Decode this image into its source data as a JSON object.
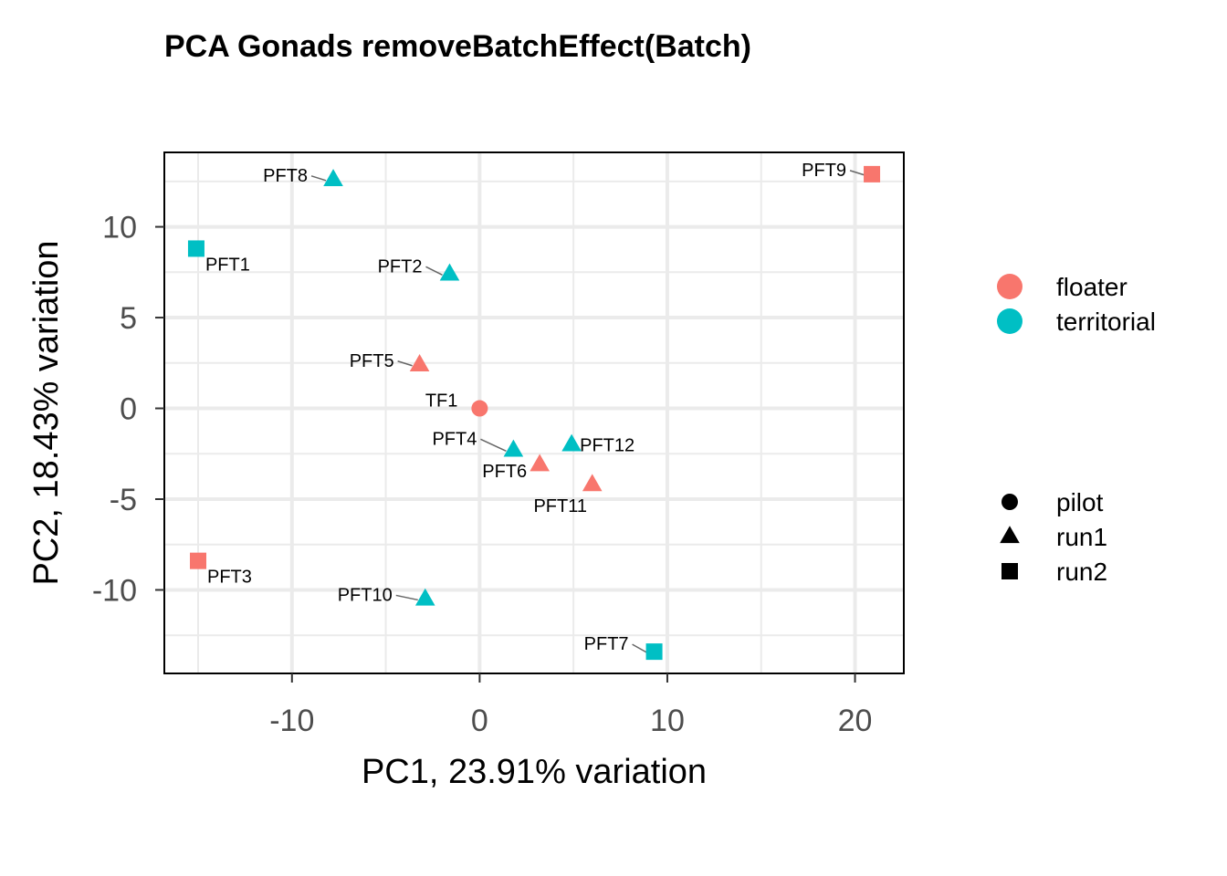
{
  "chart_data": {
    "type": "scatter",
    "title": "PCA Gonads removeBatchEffect(Batch)",
    "xlabel": "PC1, 23.91% variation",
    "ylabel": "PC2, 18.43% variation",
    "xlim": [
      -16.8,
      22.6
    ],
    "ylim": [
      -14.6,
      14.1
    ],
    "x_ticks": [
      -10,
      0,
      10,
      20
    ],
    "x_tick_labels": [
      "-10",
      "0",
      "10",
      "20"
    ],
    "y_ticks": [
      -10,
      -5,
      0,
      5,
      10
    ],
    "y_tick_labels": [
      "-10",
      "-5",
      "0",
      "5",
      "10"
    ],
    "grid": true,
    "legend_placement": "right",
    "colors": {
      "floater": "#F8766D",
      "territorial": "#00BFC4"
    },
    "legend_color": {
      "items": [
        {
          "label": "floater",
          "color": "#F8766D"
        },
        {
          "label": "territorial",
          "color": "#00BFC4"
        }
      ]
    },
    "legend_shape": {
      "items": [
        {
          "label": "pilot",
          "shape": "circle"
        },
        {
          "label": "run1",
          "shape": "triangle"
        },
        {
          "label": "run2",
          "shape": "square"
        }
      ]
    },
    "points": [
      {
        "label": "PFT1",
        "x": -15.1,
        "y": 8.8,
        "group": "territorial",
        "batch": "run2"
      },
      {
        "label": "PFT2",
        "x": -1.6,
        "y": 7.4,
        "group": "territorial",
        "batch": "run1"
      },
      {
        "label": "PFT3",
        "x": -15.0,
        "y": -8.4,
        "group": "floater",
        "batch": "run2"
      },
      {
        "label": "PFT4",
        "x": 1.8,
        "y": -2.3,
        "group": "territorial",
        "batch": "run1"
      },
      {
        "label": "PFT5",
        "x": -3.2,
        "y": 2.4,
        "group": "floater",
        "batch": "run1"
      },
      {
        "label": "PFT6",
        "x": 3.2,
        "y": -3.1,
        "group": "floater",
        "batch": "run1"
      },
      {
        "label": "PFT7",
        "x": 9.3,
        "y": -13.4,
        "group": "territorial",
        "batch": "run2"
      },
      {
        "label": "PFT8",
        "x": -7.8,
        "y": 12.6,
        "group": "territorial",
        "batch": "run1"
      },
      {
        "label": "PFT9",
        "x": 20.9,
        "y": 12.9,
        "group": "floater",
        "batch": "run2"
      },
      {
        "label": "PFT10",
        "x": -2.9,
        "y": -10.5,
        "group": "territorial",
        "batch": "run1"
      },
      {
        "label": "PFT11",
        "x": 6.0,
        "y": -4.2,
        "group": "floater",
        "batch": "run1"
      },
      {
        "label": "PFT12",
        "x": 4.9,
        "y": -2.0,
        "group": "territorial",
        "batch": "run1"
      },
      {
        "label": "TF1",
        "x": 0.0,
        "y": 0.0,
        "group": "floater",
        "batch": "pilot"
      }
    ]
  }
}
